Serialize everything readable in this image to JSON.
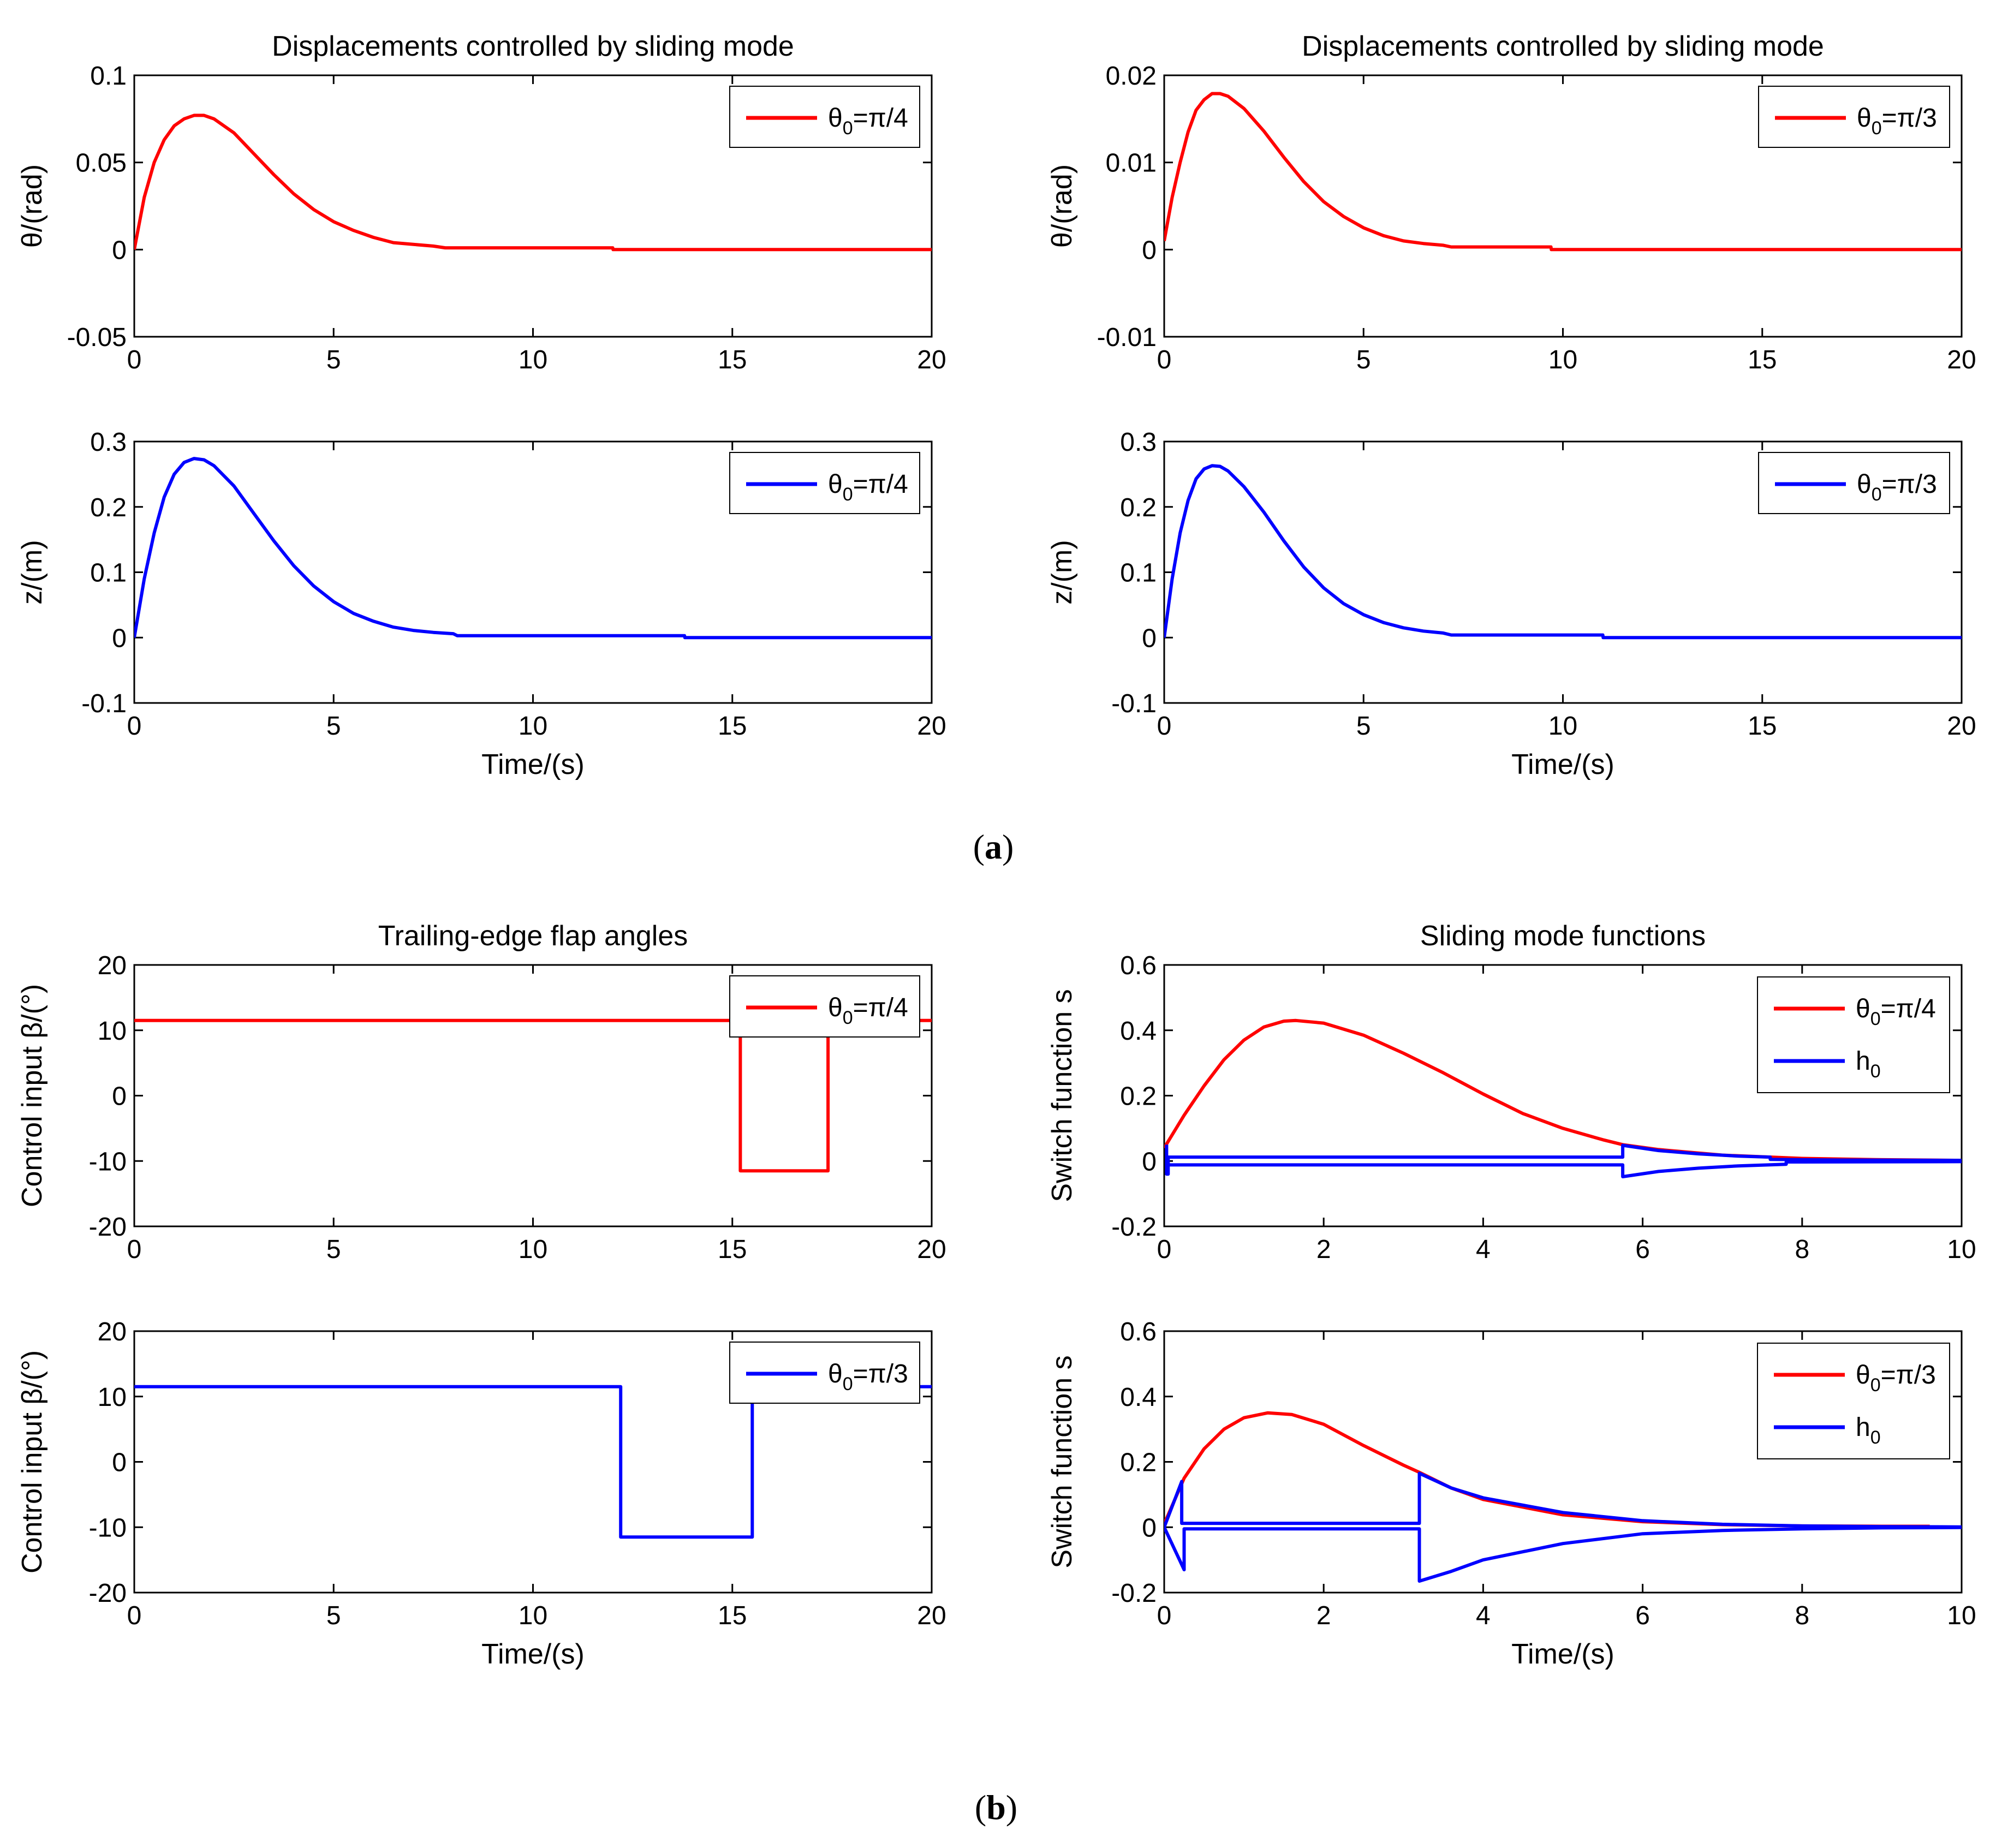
{
  "figure": {
    "panel_a_label": "a",
    "panel_b_label": "b"
  },
  "chart_data": [
    {
      "id": "a-theta-pi4",
      "type": "line",
      "title": "Displacements controlled by sliding mode",
      "xlabel": "",
      "ylabel": "θ/(rad)",
      "xlim": [
        0,
        20
      ],
      "ylim": [
        -0.05,
        0.1
      ],
      "xticks": [
        0,
        5,
        10,
        15,
        20
      ],
      "xtick_labels": [
        "0",
        "5",
        "10",
        "15",
        "20"
      ],
      "yticks": [
        -0.05,
        0,
        0.05,
        0.1
      ],
      "ytick_labels": [
        "-0.05",
        "0",
        "0.05",
        "0.1"
      ],
      "grid": false,
      "legend_position": "top-right",
      "series": [
        {
          "name": "θ0=π/4",
          "name_base": "θ",
          "name_sub": "0",
          "name_rest": "=π/4",
          "color": "#ff0000",
          "x": [
            0,
            0.25,
            0.5,
            0.75,
            1.0,
            1.25,
            1.5,
            1.75,
            2.0,
            2.5,
            3.0,
            3.5,
            4.0,
            4.5,
            5.0,
            5.5,
            6.0,
            6.5,
            7.0,
            7.5,
            7.8,
            8.5,
            10,
            12,
            12.01,
            14,
            16,
            18,
            20
          ],
          "y": [
            0,
            0.03,
            0.05,
            0.063,
            0.071,
            0.075,
            0.077,
            0.077,
            0.075,
            0.067,
            0.055,
            0.043,
            0.032,
            0.023,
            0.016,
            0.011,
            0.007,
            0.004,
            0.003,
            0.002,
            0.001,
            0.001,
            0.001,
            0.001,
            0,
            0,
            0,
            0,
            0
          ]
        }
      ]
    },
    {
      "id": "a-z-pi4",
      "type": "line",
      "title": "",
      "xlabel": "Time/(s)",
      "ylabel": "z/(m)",
      "xlim": [
        0,
        20
      ],
      "ylim": [
        -0.1,
        0.3
      ],
      "xticks": [
        0,
        5,
        10,
        15,
        20
      ],
      "xtick_labels": [
        "0",
        "5",
        "10",
        "15",
        "20"
      ],
      "yticks": [
        -0.1,
        0,
        0.1,
        0.2,
        0.3
      ],
      "ytick_labels": [
        "-0.1",
        "0",
        "0.1",
        "0.2",
        "0.3"
      ],
      "grid": false,
      "legend_position": "top-right",
      "series": [
        {
          "name": "θ0=π/4",
          "name_base": "θ",
          "name_sub": "0",
          "name_rest": "=π/4",
          "color": "#0000ff",
          "x": [
            0,
            0.25,
            0.5,
            0.75,
            1.0,
            1.25,
            1.5,
            1.75,
            2.0,
            2.5,
            3.0,
            3.5,
            4.0,
            4.5,
            5.0,
            5.5,
            6.0,
            6.5,
            7.0,
            7.5,
            8.0,
            8.1,
            10,
            13.8,
            13.81,
            16,
            18,
            20
          ],
          "y": [
            0,
            0.09,
            0.16,
            0.215,
            0.25,
            0.268,
            0.274,
            0.272,
            0.263,
            0.232,
            0.19,
            0.148,
            0.11,
            0.079,
            0.055,
            0.037,
            0.025,
            0.016,
            0.011,
            0.008,
            0.006,
            0.003,
            0.003,
            0.003,
            0,
            0,
            0,
            0
          ]
        }
      ]
    },
    {
      "id": "a-theta-pi3",
      "type": "line",
      "title": "Displacements controlled by sliding mode",
      "xlabel": "",
      "ylabel": "θ/(rad)",
      "xlim": [
        0,
        20
      ],
      "ylim": [
        -0.01,
        0.02
      ],
      "xticks": [
        0,
        5,
        10,
        15,
        20
      ],
      "xtick_labels": [
        "0",
        "5",
        "10",
        "15",
        "20"
      ],
      "yticks": [
        -0.01,
        0,
        0.01,
        0.02
      ],
      "ytick_labels": [
        "-0.01",
        "0",
        "0.01",
        "0.02"
      ],
      "grid": false,
      "legend_position": "top-right",
      "series": [
        {
          "name": "θ0=π/3",
          "name_base": "θ",
          "name_sub": "0",
          "name_rest": "=π/3",
          "color": "#ff0000",
          "x": [
            0,
            0.2,
            0.4,
            0.6,
            0.8,
            1.0,
            1.2,
            1.4,
            1.6,
            2.0,
            2.5,
            3.0,
            3.5,
            4.0,
            4.5,
            5.0,
            5.5,
            6.0,
            6.5,
            7.0,
            7.2,
            8,
            9.7,
            9.71,
            12,
            16,
            20
          ],
          "y": [
            0.001,
            0.006,
            0.01,
            0.0135,
            0.016,
            0.0172,
            0.0179,
            0.0179,
            0.0176,
            0.0162,
            0.0136,
            0.0106,
            0.0078,
            0.0055,
            0.0038,
            0.0025,
            0.0016,
            0.001,
            0.0007,
            0.0005,
            0.0003,
            0.0003,
            0.0003,
            0,
            0,
            0,
            0
          ]
        }
      ]
    },
    {
      "id": "a-z-pi3",
      "type": "line",
      "title": "",
      "xlabel": "Time/(s)",
      "ylabel": "z/(m)",
      "xlim": [
        0,
        20
      ],
      "ylim": [
        -0.1,
        0.3
      ],
      "xticks": [
        0,
        5,
        10,
        15,
        20
      ],
      "xtick_labels": [
        "0",
        "5",
        "10",
        "15",
        "20"
      ],
      "yticks": [
        -0.1,
        0,
        0.1,
        0.2,
        0.3
      ],
      "ytick_labels": [
        "-0.1",
        "0",
        "0.1",
        "0.2",
        "0.3"
      ],
      "grid": false,
      "legend_position": "top-right",
      "series": [
        {
          "name": "θ0=π/3",
          "name_base": "θ",
          "name_sub": "0",
          "name_rest": "=π/3",
          "color": "#0000ff",
          "x": [
            0,
            0.2,
            0.4,
            0.6,
            0.8,
            1.0,
            1.2,
            1.4,
            1.6,
            2.0,
            2.5,
            3.0,
            3.5,
            4.0,
            4.5,
            5.0,
            5.5,
            6.0,
            6.5,
            7.0,
            7.2,
            9,
            11.0,
            11.01,
            14,
            17,
            20
          ],
          "y": [
            0,
            0.09,
            0.16,
            0.21,
            0.243,
            0.258,
            0.263,
            0.262,
            0.255,
            0.231,
            0.192,
            0.148,
            0.108,
            0.076,
            0.052,
            0.035,
            0.023,
            0.015,
            0.01,
            0.007,
            0.004,
            0.004,
            0.004,
            0,
            0,
            0,
            0
          ]
        }
      ]
    },
    {
      "id": "b-beta-pi4",
      "type": "line",
      "title": "Trailing-edge flap angles",
      "xlabel": "",
      "ylabel": "Control input β/(°)",
      "xlim": [
        0,
        20
      ],
      "ylim": [
        -20,
        20
      ],
      "xticks": [
        0,
        5,
        10,
        15,
        20
      ],
      "xtick_labels": [
        "0",
        "5",
        "10",
        "15",
        "20"
      ],
      "yticks": [
        -20,
        -10,
        0,
        10,
        20
      ],
      "ytick_labels": [
        "-20",
        "-10",
        "0",
        "10",
        "20"
      ],
      "grid": false,
      "legend_position": "top-right",
      "series": [
        {
          "name": "θ0=π/4",
          "name_base": "θ",
          "name_sub": "0",
          "name_rest": "=π/4",
          "color": "#ff0000",
          "x": [
            0,
            15.2,
            15.2,
            17.4,
            17.4,
            20
          ],
          "y": [
            11.5,
            11.5,
            -11.5,
            -11.5,
            11.5,
            11.5
          ]
        }
      ]
    },
    {
      "id": "b-beta-pi3",
      "type": "line",
      "title": "",
      "xlabel": "Time/(s)",
      "ylabel": "Control input β/(°)",
      "xlim": [
        0,
        20
      ],
      "ylim": [
        -20,
        20
      ],
      "xticks": [
        0,
        5,
        10,
        15,
        20
      ],
      "xtick_labels": [
        "0",
        "5",
        "10",
        "15",
        "20"
      ],
      "yticks": [
        -20,
        -10,
        0,
        10,
        20
      ],
      "ytick_labels": [
        "-20",
        "-10",
        "0",
        "10",
        "20"
      ],
      "grid": false,
      "legend_position": "top-right",
      "series": [
        {
          "name": "θ0=π/3",
          "name_base": "θ",
          "name_sub": "0",
          "name_rest": "=π/3",
          "color": "#0000ff",
          "x": [
            0,
            12.2,
            12.2,
            15.5,
            15.5,
            20
          ],
          "y": [
            11.5,
            11.5,
            -11.5,
            -11.5,
            11.5,
            11.5
          ]
        }
      ]
    },
    {
      "id": "b-s-pi4",
      "type": "line",
      "title": "Sliding mode functions",
      "xlabel": "",
      "ylabel": "Switch function s",
      "xlim": [
        0,
        10
      ],
      "ylim": [
        -0.2,
        0.6
      ],
      "xticks": [
        0,
        2,
        4,
        6,
        8,
        10
      ],
      "xtick_labels": [
        "0",
        "2",
        "4",
        "6",
        "8",
        "10"
      ],
      "yticks": [
        -0.2,
        0,
        0.2,
        0.4,
        0.6
      ],
      "ytick_labels": [
        "-0.2",
        "0",
        "0.2",
        "0.4",
        "0.6"
      ],
      "grid": false,
      "legend_position": "top-right",
      "series": [
        {
          "name": "θ0=π/4",
          "name_base": "θ",
          "name_sub": "0",
          "name_rest": "=π/4",
          "color": "#ff0000",
          "x": [
            0,
            0.25,
            0.5,
            0.75,
            1.0,
            1.25,
            1.5,
            1.65,
            2.0,
            2.5,
            3.0,
            3.5,
            4.0,
            4.5,
            5.0,
            5.5,
            5.75,
            6.2,
            7.0,
            8.0,
            9.0,
            10.0
          ],
          "y": [
            0.04,
            0.14,
            0.23,
            0.31,
            0.37,
            0.41,
            0.428,
            0.43,
            0.422,
            0.385,
            0.33,
            0.27,
            0.205,
            0.145,
            0.1,
            0.065,
            0.05,
            0.035,
            0.018,
            0.008,
            0.004,
            0.002
          ]
        },
        {
          "name": "h0",
          "name_base": "h",
          "name_sub": "0",
          "name_rest": "",
          "color": "#0000ff",
          "x": [
            0.03,
            0.03,
            0.05,
            0.05,
            5.75,
            5.75,
            6.2,
            6.7,
            7.2,
            7.6,
            7.6,
            8.5,
            10.0
          ],
          "y": [
            0.05,
            -0.04,
            -0.04,
            0.012,
            0.012,
            0.048,
            0.032,
            0.022,
            0.015,
            0.012,
            0.005,
            0.003,
            0.002
          ]
        },
        {
          "name": "h0-lower",
          "name_base": "",
          "name_sub": "",
          "name_rest": "",
          "color": "#0000ff",
          "legend": false,
          "x": [
            0.05,
            5.75,
            5.75,
            6.2,
            6.7,
            7.2,
            7.8,
            7.8,
            10.0
          ],
          "y": [
            -0.012,
            -0.012,
            -0.048,
            -0.032,
            -0.022,
            -0.015,
            -0.01,
            -0.003,
            -0.002
          ]
        }
      ]
    },
    {
      "id": "b-s-pi3",
      "type": "line",
      "title": "",
      "xlabel": "Time/(s)",
      "ylabel": "Switch function s",
      "xlim": [
        0,
        10
      ],
      "ylim": [
        -0.2,
        0.6
      ],
      "xticks": [
        0,
        2,
        4,
        6,
        8,
        10
      ],
      "xtick_labels": [
        "0",
        "2",
        "4",
        "6",
        "8",
        "10"
      ],
      "yticks": [
        -0.2,
        0,
        0.2,
        0.4,
        0.6
      ],
      "ytick_labels": [
        "-0.2",
        "0",
        "0.2",
        "0.4",
        "0.6"
      ],
      "grid": false,
      "legend_position": "top-right",
      "series": [
        {
          "name": "θ0=π/3",
          "name_base": "θ",
          "name_sub": "0",
          "name_rest": "=π/3",
          "color": "#ff0000",
          "x": [
            0,
            0.25,
            0.5,
            0.75,
            1.0,
            1.3,
            1.6,
            2.0,
            2.5,
            3.0,
            3.2,
            3.6,
            4.0,
            5.0,
            6.0,
            7.0,
            8.0,
            9.0,
            9.6
          ],
          "y": [
            0.01,
            0.15,
            0.24,
            0.3,
            0.335,
            0.35,
            0.345,
            0.315,
            0.25,
            0.19,
            0.168,
            0.12,
            0.085,
            0.038,
            0.017,
            0.008,
            0.004,
            0.003,
            0.003
          ]
        },
        {
          "name": "h0",
          "name_base": "h",
          "name_sub": "0",
          "name_rest": "",
          "color": "#0000ff",
          "x": [
            0,
            0.22,
            0.22,
            3.2,
            3.2,
            3.6,
            4.0,
            5.0,
            6.0,
            7.0,
            8.0,
            9.0,
            10.0
          ],
          "y": [
            0,
            0.14,
            0.012,
            0.012,
            0.165,
            0.12,
            0.09,
            0.045,
            0.02,
            0.009,
            0.004,
            0.002,
            0.001
          ]
        },
        {
          "name": "h0-lower",
          "name_base": "",
          "name_sub": "",
          "name_rest": "",
          "color": "#0000ff",
          "legend": false,
          "x": [
            0,
            0.25,
            0.25,
            3.2,
            3.2,
            3.6,
            4.0,
            5.0,
            6.0,
            7.0,
            8.0,
            9.0,
            10.0
          ],
          "y": [
            0,
            -0.13,
            -0.005,
            -0.005,
            -0.165,
            -0.135,
            -0.1,
            -0.05,
            -0.02,
            -0.01,
            -0.005,
            -0.002,
            -0.001
          ]
        }
      ]
    }
  ]
}
